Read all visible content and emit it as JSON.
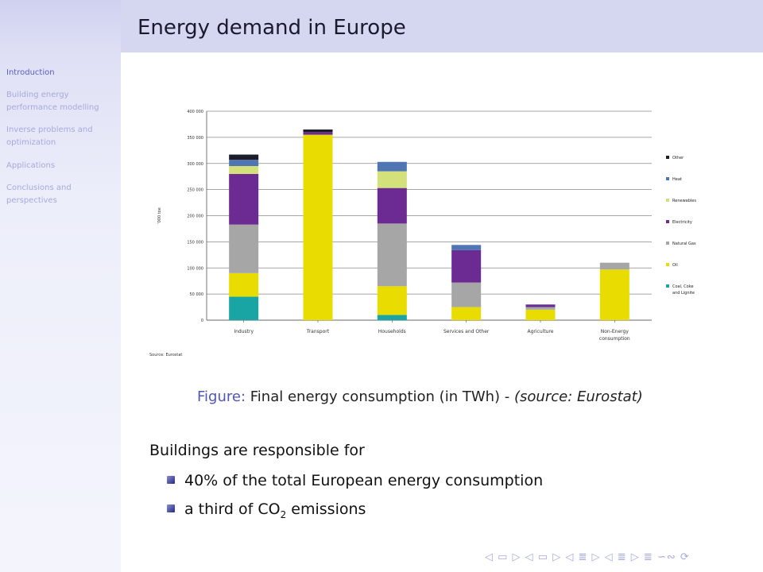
{
  "slide": {
    "title": "Energy demand in Europe"
  },
  "sidebar": {
    "items": [
      {
        "label": "Introduction"
      },
      {
        "label": "Building energy performance modelling"
      },
      {
        "label": "Inverse problems and optimization"
      },
      {
        "label": "Applications"
      },
      {
        "label": "Conclusions and perspectives"
      }
    ]
  },
  "figure": {
    "label": "Figure:",
    "text": "Final energy consumption (in TWh) -",
    "source": "(source: Eurostat)"
  },
  "chart_data": {
    "type": "bar",
    "stacked": true,
    "ylabel": "'000 toe",
    "ylim": [
      0,
      400000
    ],
    "yticks": [
      "0",
      "50 000",
      "100 000",
      "150 000",
      "200 000",
      "250 000",
      "300 000",
      "350 000",
      "400 000"
    ],
    "categories": [
      "Industry",
      "Transport",
      "Households",
      "Services and Other",
      "Agriculture",
      "Non-Energy consumption"
    ],
    "series": [
      {
        "name": "Coal, Coke and Lignite",
        "color": "#1aa5a5",
        "values": [
          45000,
          0,
          10000,
          0,
          0,
          0
        ]
      },
      {
        "name": "Oil",
        "color": "#e8dc00",
        "values": [
          45000,
          355000,
          55000,
          25000,
          20000,
          97000
        ]
      },
      {
        "name": "Natural Gas",
        "color": "#a6a6a6",
        "values": [
          93000,
          0,
          120000,
          47000,
          5000,
          13000
        ]
      },
      {
        "name": "Electricity",
        "color": "#6b2b93",
        "values": [
          97000,
          5000,
          68000,
          62000,
          5000,
          0
        ]
      },
      {
        "name": "Renewables",
        "color": "#d4e07a",
        "values": [
          15000,
          0,
          32000,
          0,
          0,
          0
        ]
      },
      {
        "name": "Heat",
        "color": "#4f76b3",
        "values": [
          12000,
          0,
          18000,
          10000,
          0,
          0
        ]
      },
      {
        "name": "Other",
        "color": "#1c1c2a",
        "values": [
          10000,
          5000,
          0,
          0,
          0,
          0
        ]
      }
    ],
    "legend_order": [
      "Other",
      "Heat",
      "Renewables",
      "Electricity",
      "Natural Gas",
      "Oil",
      "Coal, Coke and Lignite"
    ],
    "source_note": "Source: Eurostat",
    "grid": true,
    "legend_position": "right"
  },
  "content": {
    "intro": "Buildings are responsible for",
    "bullet1": "40% of the total European energy consumption",
    "bullet2_pre": "a third of CO",
    "bullet2_sub": "2",
    "bullet2_post": " emissions"
  },
  "navigation": {
    "symbols": "◁ ▭ ▷ ◁ ▭ ▷ ◁ ≣ ▷ ◁ ≣ ▷ ≣ ∽∾ ⟳"
  }
}
